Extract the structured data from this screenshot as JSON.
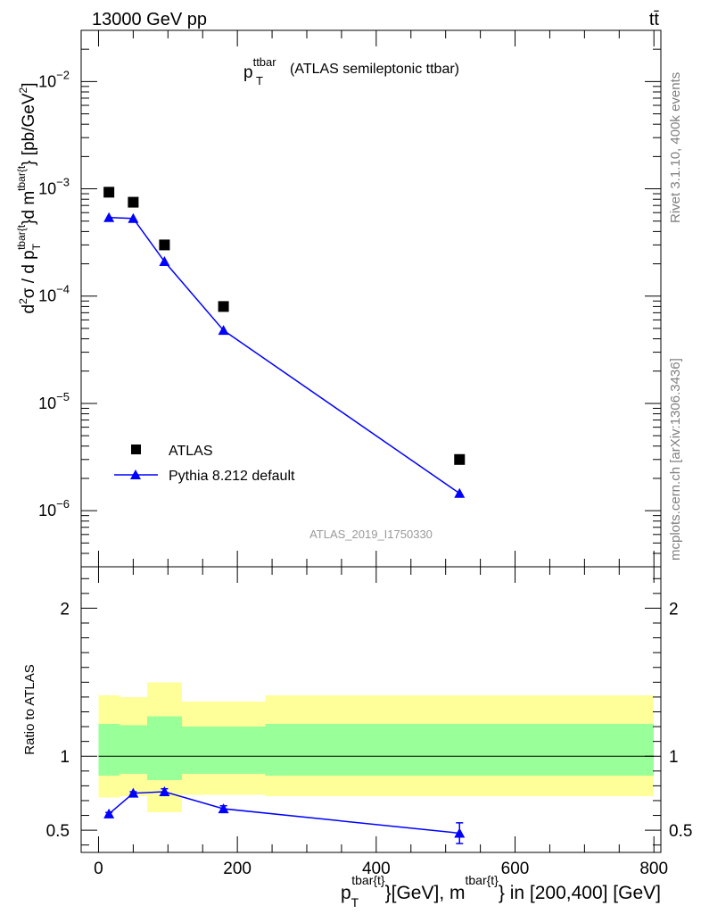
{
  "header": {
    "energy_label": "13000 GeV pp",
    "process_label": "tt̄"
  },
  "side_labels": {
    "rivet": "Rivet 3.1.10,  400k events",
    "mcplots": "mcplots.cern.ch [arXiv:1306.3436]"
  },
  "chart_data": [
    {
      "type": "scatter",
      "panel": "main",
      "title_main": "p",
      "title_sub": "T",
      "title_sup": "ttbar",
      "title_rest": "(ATLAS semileptonic ttbar)",
      "analysis_id": "ATLAS_2019_I1750330",
      "ylabel": "d²σ / d p_T^{tbar{t}} d m^{tbar{t}} [pb/GeV²]",
      "yscale": "log",
      "ylim": [
        3e-07,
        0.03
      ],
      "xlim": [
        -25,
        810
      ],
      "ytick_labels": [
        {
          "value": 1e-06,
          "base": "10",
          "exp": "−6"
        },
        {
          "value": 1e-05,
          "base": "10",
          "exp": "−5"
        },
        {
          "value": 0.0001,
          "base": "10",
          "exp": "−4"
        },
        {
          "value": 0.001,
          "base": "10",
          "exp": "−3"
        },
        {
          "value": 0.01,
          "base": "10",
          "exp": "−2"
        }
      ],
      "legend_position": "bottom-left",
      "series": [
        {
          "name": "ATLAS",
          "marker": "square",
          "color": "#000000",
          "x": [
            15,
            50,
            95,
            180,
            520
          ],
          "y": [
            0.00093,
            0.00075,
            0.0003,
            8e-05,
            3e-06
          ]
        },
        {
          "name": "Pythia 8.212 default",
          "marker": "triangle",
          "color": "#0000ff",
          "x": [
            15,
            50,
            95,
            180,
            520
          ],
          "y": [
            0.00054,
            0.00053,
            0.00021,
            4.8e-05,
            1.45e-06
          ],
          "yerr": [
            0,
            0,
            0,
            0,
            1.2e-07
          ]
        }
      ]
    },
    {
      "type": "line",
      "panel": "ratio",
      "ylabel": "Ratio to ATLAS",
      "xlabel_parts": {
        "p": "p",
        "T": "T",
        "sup1": "tbar{t}",
        "mid": "}[GeV], m",
        "sup2": "tbar{t}",
        "end": "} in [200,400] [GeV]"
      },
      "ylim": [
        0.35,
        2.28
      ],
      "xlim": [
        -25,
        810
      ],
      "ytick_labels": [
        "0.5",
        "1",
        "2"
      ],
      "ytick_values": [
        0.5,
        1,
        2
      ],
      "xtick_labels": [
        "0",
        "200",
        "400",
        "600",
        "800"
      ],
      "xtick_values": [
        0,
        200,
        400,
        600,
        800
      ],
      "bands": [
        {
          "x0": 0,
          "x1": 30,
          "yellow": [
            0.72,
            1.41
          ],
          "green": [
            0.87,
            1.22
          ]
        },
        {
          "x0": 30,
          "x1": 70,
          "yellow": [
            0.73,
            1.4
          ],
          "green": [
            0.88,
            1.21
          ]
        },
        {
          "x0": 70,
          "x1": 120,
          "yellow": [
            0.62,
            1.5
          ],
          "green": [
            0.84,
            1.27
          ]
        },
        {
          "x0": 120,
          "x1": 240,
          "yellow": [
            0.74,
            1.37
          ],
          "green": [
            0.88,
            1.2
          ]
        },
        {
          "x0": 240,
          "x1": 800,
          "yellow": [
            0.73,
            1.41
          ],
          "green": [
            0.87,
            1.22
          ]
        }
      ],
      "reference_line": 1,
      "series": [
        {
          "name": "Pythia 8.212 default",
          "color": "#0000ff",
          "x": [
            15,
            50,
            95,
            180,
            520
          ],
          "y": [
            0.61,
            0.75,
            0.76,
            0.645,
            0.48
          ],
          "yerr": [
            0.01,
            0.01,
            0.02,
            0.02,
            0.07
          ]
        }
      ]
    }
  ]
}
